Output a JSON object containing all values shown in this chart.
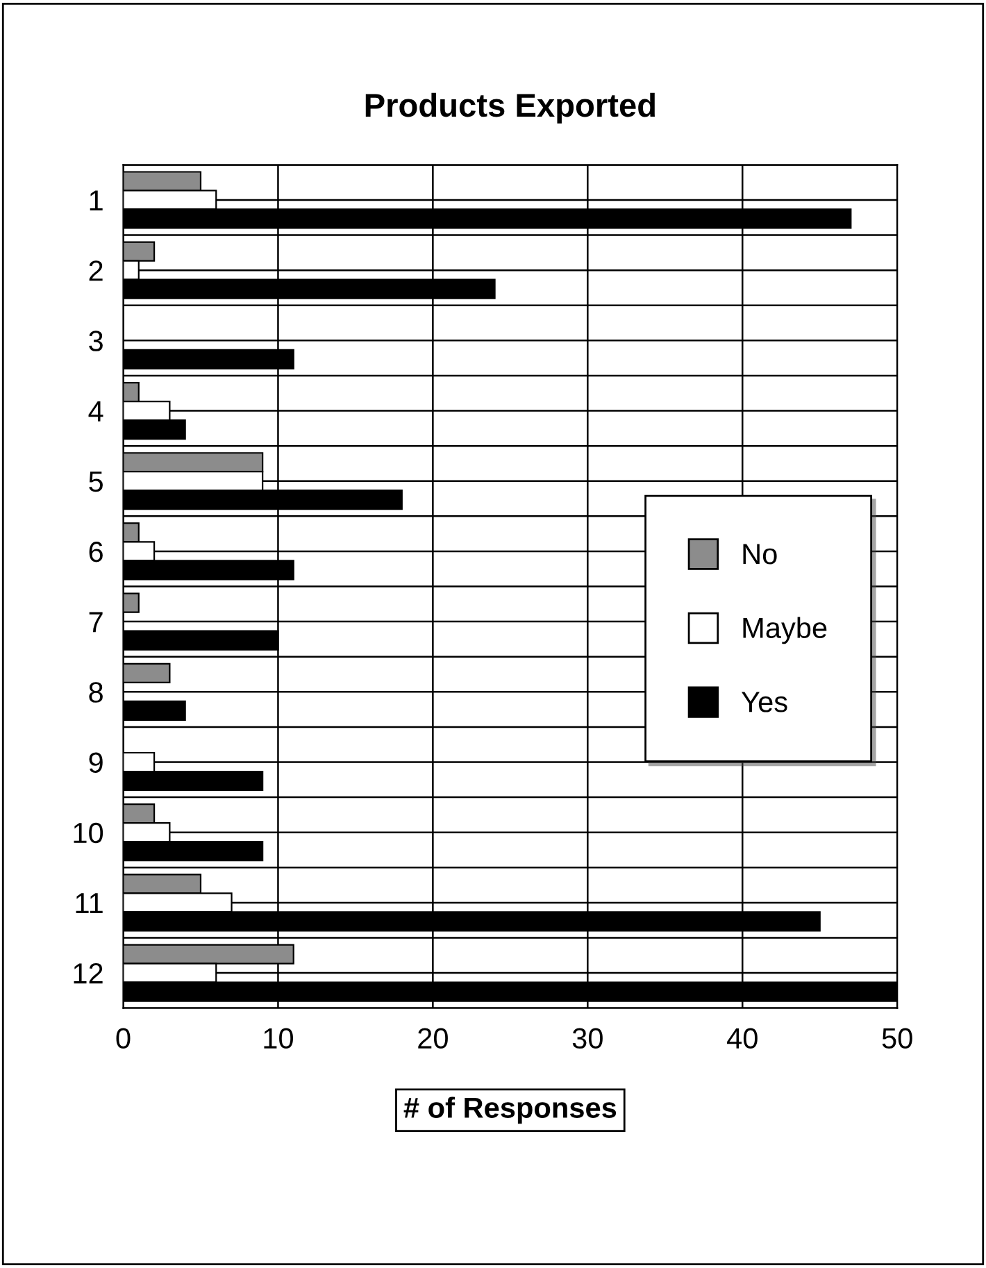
{
  "chart_data": {
    "type": "bar",
    "orientation": "horizontal",
    "title": "Products Exported",
    "xlabel": "# of Responses",
    "categories": [
      "1",
      "2",
      "3",
      "4",
      "5",
      "6",
      "7",
      "8",
      "9",
      "10",
      "11",
      "12"
    ],
    "series": [
      {
        "name": "No",
        "color": "#8c8c8c",
        "values": [
          5,
          2,
          0,
          1,
          9,
          1,
          1,
          3,
          0,
          2,
          5,
          11
        ]
      },
      {
        "name": "Maybe",
        "color": "#ffffff",
        "values": [
          6,
          1,
          0,
          3,
          9,
          2,
          0,
          0,
          2,
          3,
          7,
          6
        ]
      },
      {
        "name": "Yes",
        "color": "#000000",
        "values": [
          47,
          24,
          11,
          4,
          18,
          11,
          10,
          4,
          9,
          9,
          45,
          50
        ]
      }
    ],
    "xlim": [
      0,
      50
    ],
    "xticks": [
      0,
      10,
      20,
      30,
      40,
      50
    ],
    "grid": true,
    "legend": "right"
  }
}
